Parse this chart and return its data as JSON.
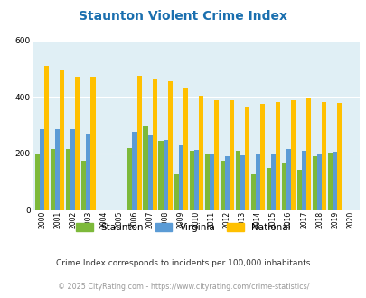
{
  "title": "Staunton Violent Crime Index",
  "years": [
    2000,
    2001,
    2002,
    2003,
    2004,
    2005,
    2006,
    2007,
    2008,
    2009,
    2010,
    2011,
    2012,
    2013,
    2014,
    2015,
    2016,
    2017,
    2018,
    2019,
    2020
  ],
  "staunton": [
    200,
    215,
    215,
    175,
    0,
    0,
    220,
    300,
    245,
    125,
    210,
    198,
    175,
    210,
    125,
    148,
    165,
    143,
    190,
    202,
    0
  ],
  "virginia": [
    285,
    285,
    285,
    270,
    0,
    0,
    275,
    265,
    248,
    228,
    212,
    200,
    190,
    195,
    200,
    198,
    215,
    208,
    200,
    207,
    0
  ],
  "national": [
    510,
    495,
    470,
    470,
    0,
    0,
    473,
    465,
    455,
    430,
    405,
    388,
    388,
    367,
    375,
    383,
    388,
    398,
    383,
    380,
    0
  ],
  "staunton_color": "#7db93a",
  "virginia_color": "#5b9bd5",
  "national_color": "#ffc000",
  "plot_bg": "#e0eff5",
  "ylim": [
    0,
    600
  ],
  "yticks": [
    0,
    200,
    400,
    600
  ],
  "subtitle": "Crime Index corresponds to incidents per 100,000 inhabitants",
  "footer": "© 2025 CityRating.com - https://www.cityrating.com/crime-statistics/",
  "title_color": "#1a6faf",
  "subtitle_color": "#333333",
  "footer_color": "#999999",
  "legend_labels": [
    "Staunton",
    "Virginia",
    "National"
  ]
}
